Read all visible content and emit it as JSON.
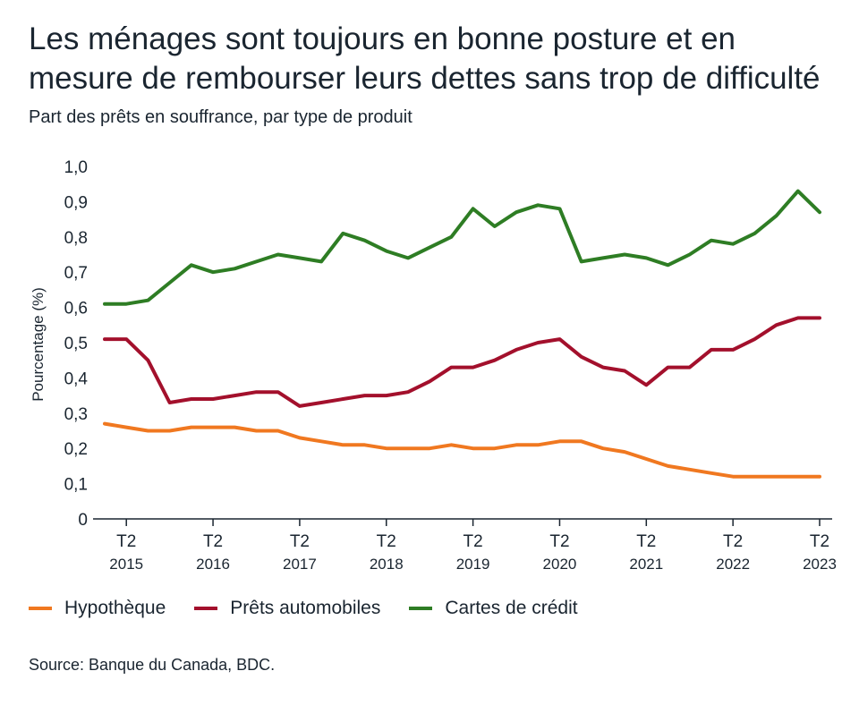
{
  "header": {
    "title_line1": "Les ménages sont toujours en bonne posture et en",
    "title_line2": "mesure de rembourser leurs dettes sans trop de difficulté",
    "subtitle": "Part des prêts en souffrance, par type de produit"
  },
  "footer": {
    "source": "Source: Banque du Canada, BDC."
  },
  "chart_data": {
    "type": "line",
    "title": "Les ménages sont toujours en bonne posture et en mesure de rembourser leurs dettes sans trop de difficulté",
    "subtitle": "Part des prêts en souffrance, par type de produit",
    "ylabel": "Pourcentage (%)",
    "xlabel": "",
    "ylim": [
      0,
      1.0
    ],
    "y_ticks": [
      "0",
      "0,1",
      "0,2",
      "0,3",
      "0,4",
      "0,5",
      "0,6",
      "0,7",
      "0,8",
      "0,9",
      "1,0"
    ],
    "x_tick_labels": [
      {
        "quarter": "T2",
        "year": "2015"
      },
      {
        "quarter": "T2",
        "year": "2016"
      },
      {
        "quarter": "T2",
        "year": "2017"
      },
      {
        "quarter": "T2",
        "year": "2018"
      },
      {
        "quarter": "T2",
        "year": "2019"
      },
      {
        "quarter": "T2",
        "year": "2020"
      },
      {
        "quarter": "T2",
        "year": "2021"
      },
      {
        "quarter": "T2",
        "year": "2022"
      },
      {
        "quarter": "T2",
        "year": "2023"
      }
    ],
    "x": [
      "2015T1",
      "2015T2",
      "2015T3",
      "2015T4",
      "2016T1",
      "2016T2",
      "2016T3",
      "2016T4",
      "2017T1",
      "2017T2",
      "2017T3",
      "2017T4",
      "2018T1",
      "2018T2",
      "2018T3",
      "2018T4",
      "2019T1",
      "2019T2",
      "2019T3",
      "2019T4",
      "2020T1",
      "2020T2",
      "2020T3",
      "2020T4",
      "2021T1",
      "2021T2",
      "2021T3",
      "2021T4",
      "2022T1",
      "2022T2",
      "2022T3",
      "2022T4",
      "2023T1",
      "2023T2"
    ],
    "grid": false,
    "legend_position": "bottom",
    "series": [
      {
        "name": "Hypothèque",
        "color": "#f07820",
        "values": [
          0.27,
          0.26,
          0.25,
          0.25,
          0.26,
          0.26,
          0.26,
          0.25,
          0.25,
          0.23,
          0.22,
          0.21,
          0.21,
          0.2,
          0.2,
          0.2,
          0.21,
          0.2,
          0.2,
          0.21,
          0.21,
          0.22,
          0.22,
          0.2,
          0.19,
          0.17,
          0.15,
          0.14,
          0.13,
          0.12,
          0.12,
          0.12,
          0.12,
          0.12
        ]
      },
      {
        "name": "Prêts automobiles",
        "color": "#a3102c",
        "values": [
          0.51,
          0.51,
          0.45,
          0.33,
          0.34,
          0.34,
          0.35,
          0.36,
          0.36,
          0.32,
          0.33,
          0.34,
          0.35,
          0.35,
          0.36,
          0.39,
          0.43,
          0.43,
          0.45,
          0.48,
          0.5,
          0.51,
          0.46,
          0.43,
          0.42,
          0.38,
          0.43,
          0.43,
          0.48,
          0.48,
          0.51,
          0.55,
          0.57,
          0.57
        ]
      },
      {
        "name": "Cartes de crédit",
        "color": "#2e7d24",
        "values": [
          0.61,
          0.61,
          0.62,
          0.67,
          0.72,
          0.7,
          0.71,
          0.73,
          0.75,
          0.74,
          0.73,
          0.81,
          0.79,
          0.76,
          0.74,
          0.77,
          0.8,
          0.88,
          0.83,
          0.87,
          0.89,
          0.88,
          0.73,
          0.74,
          0.75,
          0.74,
          0.72,
          0.75,
          0.79,
          0.78,
          0.81,
          0.86,
          0.93,
          0.87
        ]
      }
    ]
  }
}
